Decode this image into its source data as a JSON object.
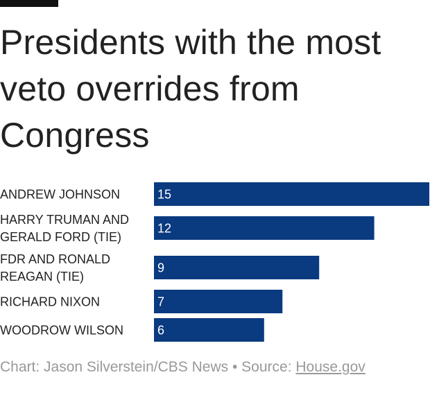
{
  "title": "Presidents with the most veto overrides from Congress",
  "chart_data": {
    "type": "bar",
    "orientation": "horizontal",
    "title": "Presidents with the most veto overrides from Congress",
    "categories": [
      "ANDREW JOHNSON",
      "HARRY TRUMAN AND GERALD FORD (TIE)",
      "FDR AND RONALD REAGAN (TIE)",
      "RICHARD NIXON",
      "WOODROW WILSON"
    ],
    "category_lines": [
      [
        "ANDREW JOHNSON"
      ],
      [
        "HARRY TRUMAN AND",
        "GERALD FORD (TIE)"
      ],
      [
        "FDR AND RONALD",
        "REAGAN (TIE)"
      ],
      [
        "RICHARD NIXON"
      ],
      [
        "WOODROW WILSON"
      ]
    ],
    "values": [
      15,
      12,
      9,
      7,
      6
    ],
    "xlim": [
      0,
      15
    ],
    "xlabel": "",
    "ylabel": "",
    "grid": false,
    "bar_color": "#0a3a80"
  },
  "footer": {
    "credit": "Chart: Jason Silverstein/CBS News",
    "separator": "•",
    "source_label": "Source:",
    "source_link": "House.gov"
  }
}
